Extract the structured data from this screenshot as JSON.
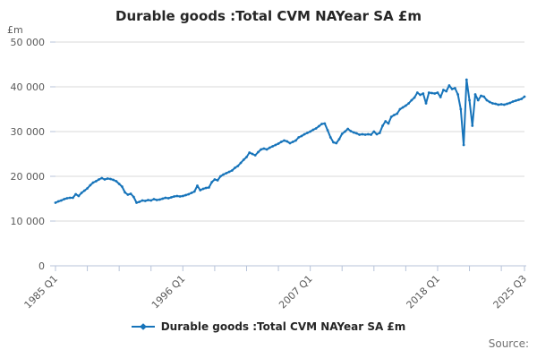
{
  "title": "Durable goods :Total CVM NAYear SA £m",
  "legend": {
    "label": "Durable goods :Total CVM NAYear SA £m"
  },
  "source_label": "Source:",
  "colors": {
    "line": "#1774ba",
    "grid": "#d9d9d9",
    "axis": "#b7c3d9",
    "tick_text": "#595959",
    "title_text": "#262626",
    "source_text": "#707070",
    "background": "#ffffff"
  },
  "chart_data": {
    "type": "line",
    "title": "Durable goods :Total CVM NAYear SA £m",
    "ylabel_unit": "£m",
    "ylim": [
      0,
      50000
    ],
    "grid": true,
    "legend_position": "bottom",
    "y_ticks": [
      {
        "label": "50 000",
        "value": 50000
      },
      {
        "label": "40 000",
        "value": 40000
      },
      {
        "label": "30 000",
        "value": 30000
      },
      {
        "label": "20 000",
        "value": 20000
      },
      {
        "label": "10 000",
        "value": 10000
      },
      {
        "label": "0",
        "value": 0
      }
    ],
    "x_labeled_ticks": [
      {
        "label": "1985 Q1",
        "index": 0
      },
      {
        "label": "1996 Q1",
        "index": 44
      },
      {
        "label": "2007 Q1",
        "index": 88
      },
      {
        "label": "2018 Q1",
        "index": 132
      },
      {
        "label": "2025 Q3",
        "index": 162
      }
    ],
    "x_minor_tick_indices": [
      0,
      11,
      22,
      33,
      44,
      55,
      66,
      77,
      88,
      99,
      110,
      121,
      132,
      143,
      154,
      162
    ],
    "x_start": "1985 Q1",
    "x_end": "2025 Q3",
    "frequency": "quarterly",
    "series_name": "Durable goods :Total CVM NAYear SA £m",
    "values": [
      14100,
      14400,
      14600,
      14900,
      15100,
      15200,
      15200,
      16000,
      15600,
      16300,
      16800,
      17300,
      18000,
      18600,
      18900,
      19300,
      19600,
      19300,
      19500,
      19400,
      19200,
      18900,
      18300,
      17700,
      16400,
      15900,
      16100,
      15400,
      14100,
      14300,
      14600,
      14500,
      14700,
      14600,
      14900,
      14700,
      14800,
      15000,
      15200,
      15100,
      15300,
      15500,
      15600,
      15500,
      15600,
      15800,
      16000,
      16300,
      16600,
      17900,
      16900,
      17200,
      17400,
      17500,
      18700,
      19300,
      19100,
      20000,
      20400,
      20700,
      21000,
      21300,
      21900,
      22300,
      23000,
      23700,
      24300,
      25300,
      25000,
      24700,
      25400,
      26000,
      26200,
      26000,
      26400,
      26700,
      27000,
      27300,
      27700,
      28000,
      27800,
      27400,
      27700,
      28000,
      28700,
      29000,
      29400,
      29700,
      30000,
      30400,
      30700,
      31200,
      31700,
      31800,
      30300,
      28700,
      27600,
      27400,
      28300,
      29500,
      30000,
      30600,
      30100,
      29800,
      29600,
      29300,
      29400,
      29300,
      29400,
      29300,
      30000,
      29400,
      29700,
      31300,
      32300,
      31800,
      33300,
      33700,
      34000,
      35000,
      35400,
      35800,
      36300,
      37000,
      37600,
      38700,
      38200,
      38500,
      36300,
      38700,
      38600,
      38500,
      38700,
      37700,
      39300,
      39000,
      40300,
      39500,
      39700,
      38300,
      35000,
      27000,
      41600,
      37000,
      31300,
      38300,
      37000,
      38000,
      37800,
      37000,
      36600,
      36300,
      36200,
      36000,
      36100,
      36000,
      36200,
      36400,
      36700,
      36900,
      37100,
      37300,
      37800
    ]
  }
}
